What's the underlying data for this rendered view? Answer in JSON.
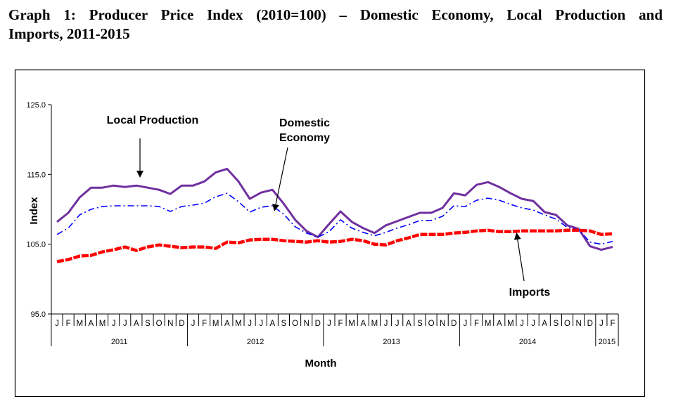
{
  "page": {
    "title_line1": "Graph 1: Producer Price Index (2010=100) –  Domestic Economy, Local Production and",
    "title_line2": "Imports, 2011-2015"
  },
  "chart_data": {
    "type": "line",
    "title": "Graph 1: Producer Price Index (2010=100) – Domestic Economy, Local Production and Imports, 2011-2015",
    "xlabel": "Month",
    "ylabel": "Index",
    "ylim": [
      95.0,
      125.0
    ],
    "yticks": [
      "95.0",
      "105.0",
      "115.0",
      "125.0"
    ],
    "grid": false,
    "month_labels": [
      "J",
      "F",
      "M",
      "A",
      "M",
      "J",
      "J",
      "A",
      "S",
      "O",
      "N",
      "D",
      "J",
      "F",
      "M",
      "A",
      "M",
      "J",
      "J",
      "A",
      "S",
      "O",
      "N",
      "D",
      "J",
      "F",
      "M",
      "A",
      "M",
      "J",
      "J",
      "A",
      "S",
      "O",
      "N",
      "D",
      "J",
      "F",
      "M",
      "A",
      "M",
      "J",
      "J",
      "A",
      "S",
      "O",
      "N",
      "D",
      "J",
      "F"
    ],
    "year_groups": [
      {
        "label": "2011",
        "months": 12
      },
      {
        "label": "2012",
        "months": 12
      },
      {
        "label": "2013",
        "months": 12
      },
      {
        "label": "2014",
        "months": 12
      },
      {
        "label": "2015",
        "months": 2
      }
    ],
    "series": [
      {
        "name": "Local Production",
        "color": "#7030A0",
        "style": "solid",
        "values": [
          108.2,
          109.5,
          111.7,
          113.1,
          113.1,
          113.4,
          113.2,
          113.4,
          113.1,
          112.8,
          112.2,
          113.4,
          113.4,
          114.0,
          115.3,
          115.8,
          114.0,
          111.5,
          112.4,
          112.8,
          110.8,
          108.5,
          106.9,
          106.0,
          107.9,
          109.7,
          108.2,
          107.3,
          106.6,
          107.7,
          108.3,
          108.9,
          109.5,
          109.5,
          110.2,
          112.3,
          112.0,
          113.5,
          113.9,
          113.2,
          112.3,
          111.5,
          111.2,
          109.6,
          109.2,
          107.7,
          107.2,
          104.7,
          104.2,
          104.6
        ]
      },
      {
        "name": "Domestic Economy",
        "color": "#0000FF",
        "style": "dashdot",
        "values": [
          106.4,
          107.3,
          109.2,
          110.0,
          110.4,
          110.5,
          110.5,
          110.5,
          110.5,
          110.4,
          109.7,
          110.4,
          110.6,
          110.9,
          111.8,
          112.3,
          111.1,
          109.6,
          110.3,
          110.5,
          109.3,
          107.5,
          106.6,
          106.0,
          106.8,
          108.5,
          107.3,
          106.7,
          106.2,
          106.7,
          107.3,
          107.8,
          108.4,
          108.4,
          109.0,
          110.5,
          110.4,
          111.3,
          111.6,
          111.3,
          110.7,
          110.2,
          109.9,
          109.2,
          108.6,
          107.4,
          107.1,
          105.3,
          105.0,
          105.4
        ]
      },
      {
        "name": "Imports",
        "color": "#FF0000",
        "style": "dashed",
        "values": [
          102.5,
          102.8,
          103.3,
          103.4,
          103.9,
          104.2,
          104.6,
          104.1,
          104.6,
          104.9,
          104.7,
          104.5,
          104.6,
          104.6,
          104.4,
          105.3,
          105.2,
          105.6,
          105.7,
          105.7,
          105.5,
          105.4,
          105.3,
          105.5,
          105.3,
          105.4,
          105.7,
          105.5,
          105.0,
          104.9,
          105.5,
          105.9,
          106.4,
          106.4,
          106.4,
          106.6,
          106.7,
          106.9,
          107.0,
          106.8,
          106.8,
          106.9,
          106.9,
          106.9,
          106.9,
          107.0,
          107.0,
          106.9,
          106.4,
          106.5
        ]
      }
    ],
    "annotations": [
      {
        "text": "Local Production",
        "points_to": "Local Production"
      },
      {
        "text_lines": [
          "Domestic",
          "Economy"
        ],
        "points_to": "Domestic Economy"
      },
      {
        "text": "Imports",
        "points_to": "Imports"
      }
    ]
  }
}
